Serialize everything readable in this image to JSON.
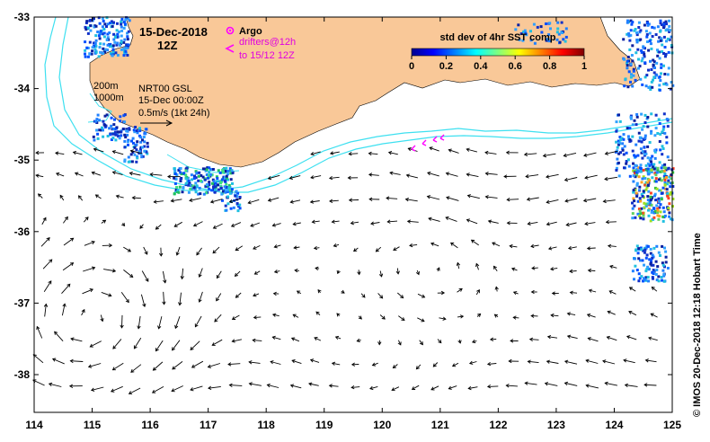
{
  "map": {
    "date_line1": "15-Dec-2018",
    "date_line2": "12Z",
    "argo_label": "Argo",
    "drifters_line1": "drifters@12h",
    "drifters_line2": "to 15/12 12Z",
    "isobath_200": "200m",
    "isobath_1000": "1000m",
    "source_line1": "NRT00 GSL",
    "source_line2": "15-Dec 00:00Z",
    "scale_label": "0.5m/s (1kt 24h)",
    "colorbar_title": "std dev of 4hr SST comp",
    "colorbar_ticks": [
      "0",
      "0.2",
      "0.4",
      "0.6",
      "0.8",
      "1"
    ],
    "credit": "© IMOS 20-Dec-2018 12:18 Hobart Time",
    "lat_labels": [
      "-33",
      "-34",
      "-35",
      "-36",
      "-37",
      "-38"
    ],
    "lon_labels": [
      "114",
      "115",
      "116",
      "117",
      "118",
      "119",
      "120",
      "121",
      "122",
      "123",
      "124",
      "125"
    ]
  },
  "colors": {
    "land": "#f9c898",
    "isobath": "#3ee0f0",
    "drifter": "#ff00ff",
    "vector": "#000000"
  }
}
